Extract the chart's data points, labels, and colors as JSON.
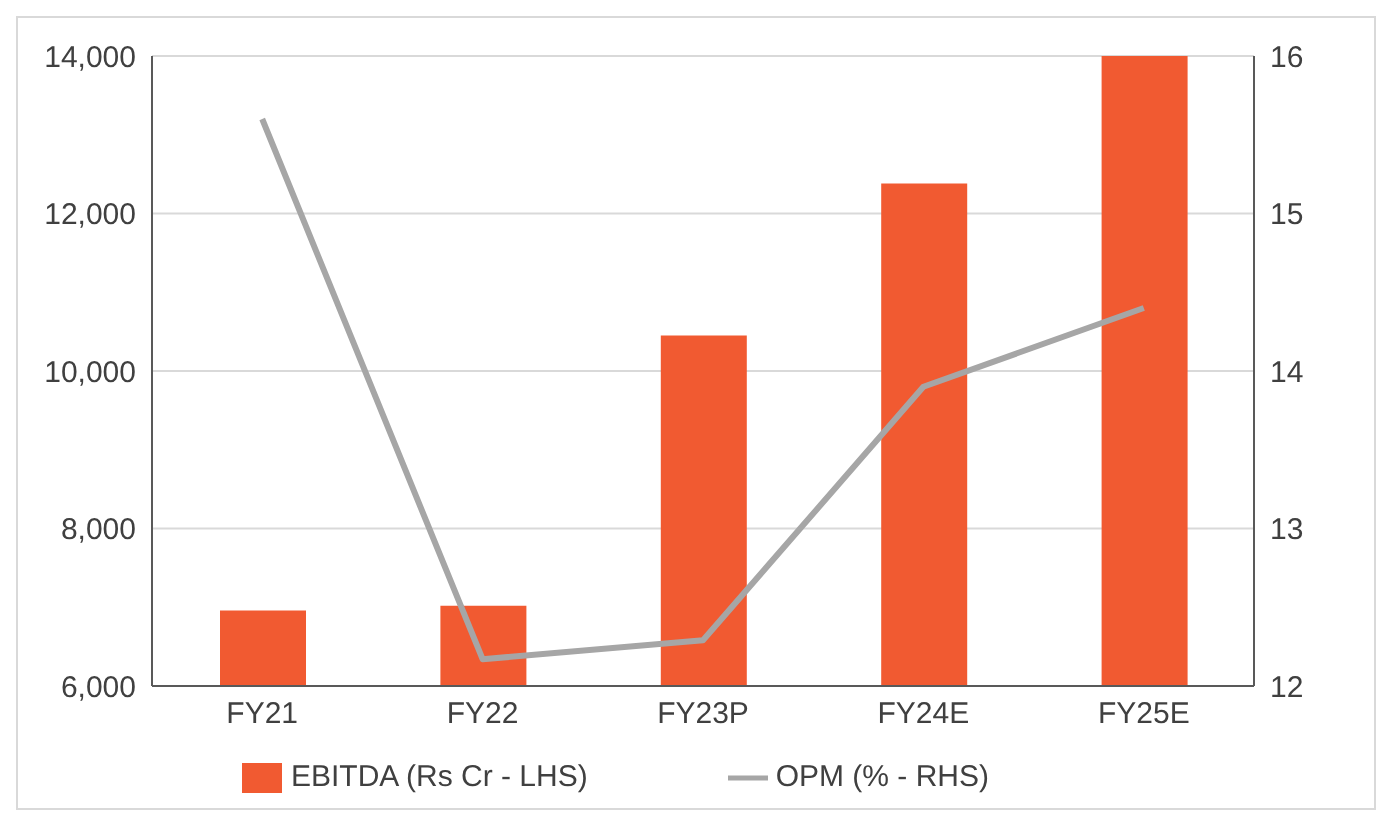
{
  "chart_data": {
    "type": "bar",
    "categories": [
      "FY21",
      "FY22",
      "FY23P",
      "FY24E",
      "FY25E"
    ],
    "series": [
      {
        "name": "EBITDA (Rs Cr - LHS)",
        "color": "#f15a31",
        "values": [
          6960,
          7020,
          10450,
          12380,
          14000
        ]
      },
      {
        "name": "OPM (% - RHS)",
        "type": "line",
        "axis": "y2",
        "color": "#a6a6a6",
        "values": [
          15.6,
          12.17,
          12.29,
          13.9,
          14.4
        ]
      }
    ],
    "ylim": [
      6000,
      14000
    ],
    "yticks": [
      {
        "value": 6000,
        "label": "6,000"
      },
      {
        "value": 8000,
        "label": "8,000"
      },
      {
        "value": 10000,
        "label": "10,000"
      },
      {
        "value": 12000,
        "label": "12,000"
      },
      {
        "value": 14000,
        "label": "14,000"
      }
    ],
    "y2lim": [
      12,
      16
    ],
    "y2ticks": [
      12,
      13,
      14,
      15,
      16
    ],
    "grid": "y",
    "legend": "bottom",
    "marker": "none"
  }
}
